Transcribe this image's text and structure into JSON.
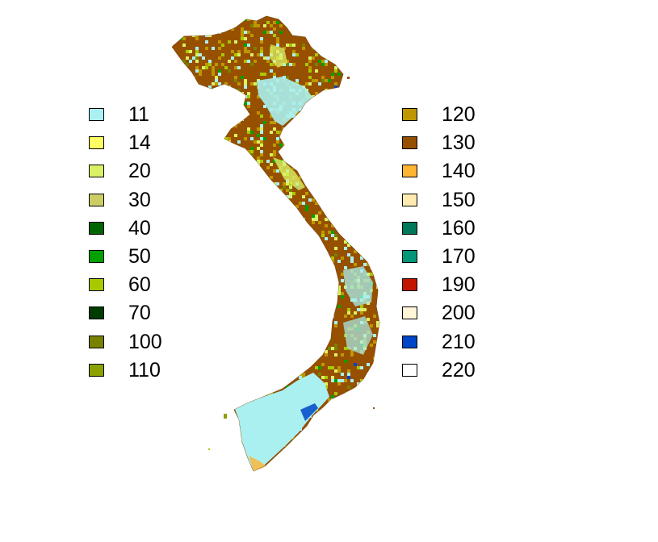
{
  "legend": {
    "left": [
      {
        "label": "11",
        "color": "#AAF0F0"
      },
      {
        "label": "14",
        "color": "#FFFF64"
      },
      {
        "label": "20",
        "color": "#DCF064"
      },
      {
        "label": "30",
        "color": "#CDCD66"
      },
      {
        "label": "40",
        "color": "#006400"
      },
      {
        "label": "50",
        "color": "#00A000"
      },
      {
        "label": "60",
        "color": "#AAC800"
      },
      {
        "label": "70",
        "color": "#003C00"
      },
      {
        "label": "100",
        "color": "#788200"
      },
      {
        "label": "110",
        "color": "#8CA000"
      }
    ],
    "right": [
      {
        "label": "120",
        "color": "#BE9600"
      },
      {
        "label": "130",
        "color": "#965000"
      },
      {
        "label": "140",
        "color": "#FFB432"
      },
      {
        "label": "150",
        "color": "#FFEBAF"
      },
      {
        "label": "160",
        "color": "#00785A"
      },
      {
        "label": "170",
        "color": "#009678"
      },
      {
        "label": "190",
        "color": "#C31400"
      },
      {
        "label": "200",
        "color": "#FFF5D7"
      },
      {
        "label": "210",
        "color": "#0046C8"
      },
      {
        "label": "220",
        "color": "#FFFFFF"
      }
    ]
  },
  "map": {
    "region": "Vietnam",
    "dominant_classes": [
      "130",
      "120",
      "11",
      "20",
      "60",
      "50",
      "210"
    ]
  }
}
